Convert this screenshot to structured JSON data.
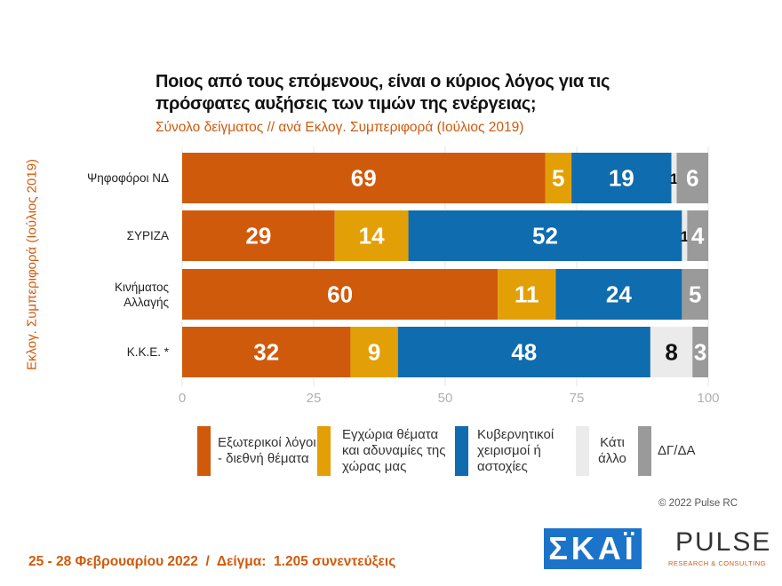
{
  "chart_data": {
    "type": "stacked-bar-horizontal",
    "title": "Ποιος από τους επόμενους, είναι ο κύριος λόγος για τις πρόσφατες αυξήσεις των τιμών της ενέργειας;",
    "subtitle": "Σύνολο δείγματος // ανά Εκλογ. Συμπεριφορά (Ιούλιος 2019)",
    "y_label": "Εκλογ. Συμπεριφορά (Ιούλιος 2019)",
    "categories": [
      "Ψηφοφόροι ΝΔ",
      "ΣΥΡΙΖΑ",
      "Κινήματος Αλλαγής",
      "Κ.Κ.Ε. *"
    ],
    "series": [
      {
        "name": "Εξωτερικοί λόγοι - διεθνή θέματα",
        "color": "#d05a0c",
        "values": [
          69,
          29,
          60,
          32
        ]
      },
      {
        "name": "Εγχώρια θέματα και αδυναμίες της χώρας μας",
        "color": "#e3a006",
        "values": [
          5,
          14,
          11,
          9
        ]
      },
      {
        "name": "Κυβερνητικοί χειρισμοί ή αστοχίες",
        "color": "#0f6cae",
        "values": [
          19,
          52,
          24,
          48
        ]
      },
      {
        "name": "Κάτι άλλο",
        "color": "#ebebeb",
        "values": [
          1,
          1,
          null,
          8
        ]
      },
      {
        "name": "ΔΓ/ΔΑ",
        "color": "#9a9a9a",
        "values": [
          6,
          4,
          5,
          3
        ]
      }
    ],
    "xlim": [
      0,
      100
    ],
    "xticks": [
      0,
      25,
      50,
      75,
      100
    ],
    "grid": true
  },
  "footer": {
    "copyright": "© 2022 Pulse RC",
    "survey": "25 - 28 Φεβρουαρίου 2022  /  Δείγμα:  1.205 συνεντεύξεις",
    "logo_skai": "ΣΚΑΪ",
    "logo_pulse": "PULSE",
    "logo_pulse_sub": "RESEARCH & CONSULTING"
  }
}
